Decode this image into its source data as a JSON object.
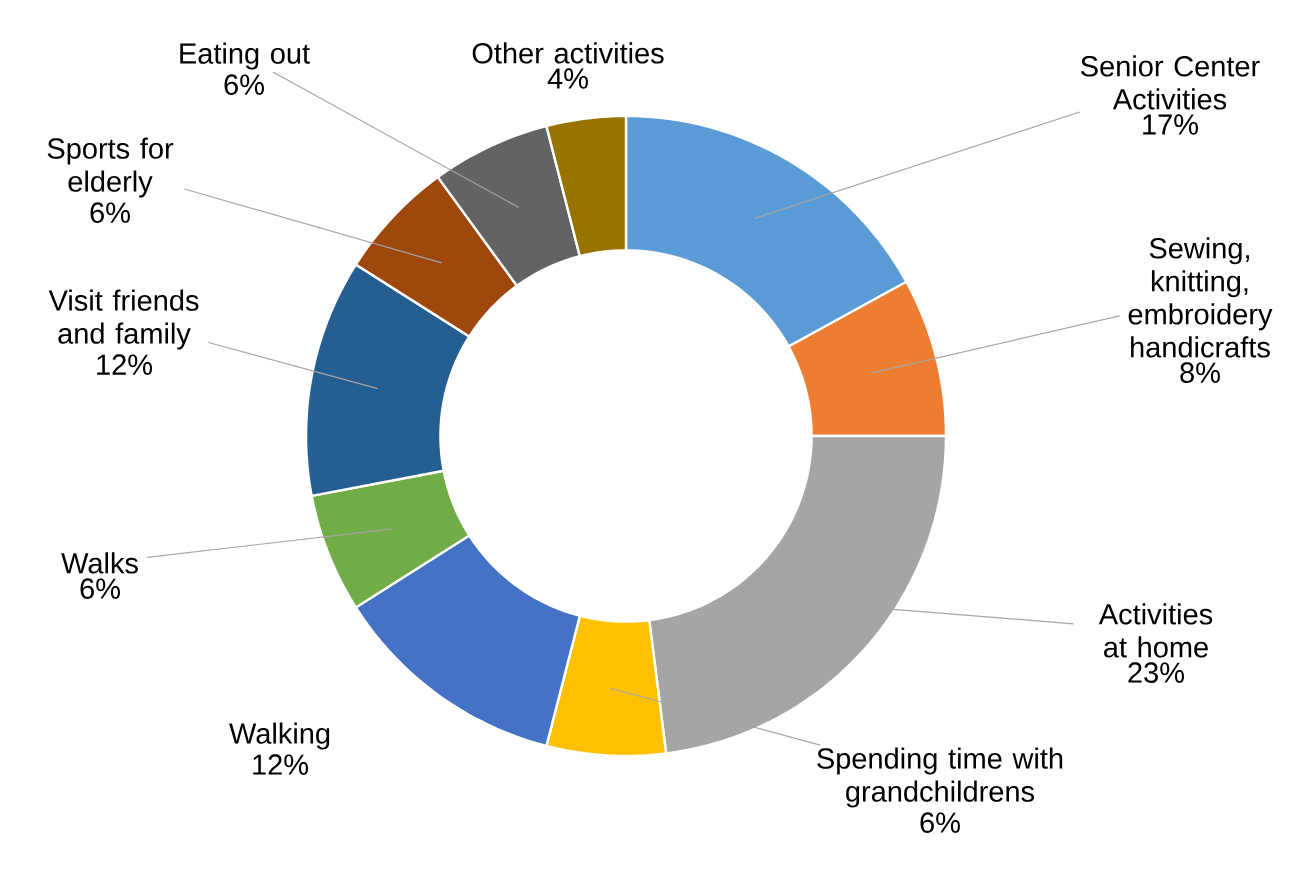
{
  "chart_data": {
    "type": "donut",
    "categories": [
      "Senior Center Activities",
      "Sewing, knitting, embroidery handicrafts",
      "Activities at home",
      "Spending time with grandchildrens",
      "Walking",
      "Walks",
      "Visit friends and family",
      "Sports for elderly",
      "Eating out",
      "Other activities"
    ],
    "values": [
      17,
      8,
      23,
      6,
      12,
      6,
      12,
      6,
      6,
      4
    ],
    "value_labels": [
      "17%",
      "8%",
      "23%",
      "6%",
      "12%",
      "6%",
      "12%",
      "6%",
      "6%",
      "4%"
    ],
    "colors": [
      "#5b9bd5",
      "#ed7d31",
      "#a5a5a5",
      "#ffc000",
      "#4472c4",
      "#70ad47",
      "#255e91",
      "#9e480e",
      "#636363",
      "#997300"
    ]
  }
}
